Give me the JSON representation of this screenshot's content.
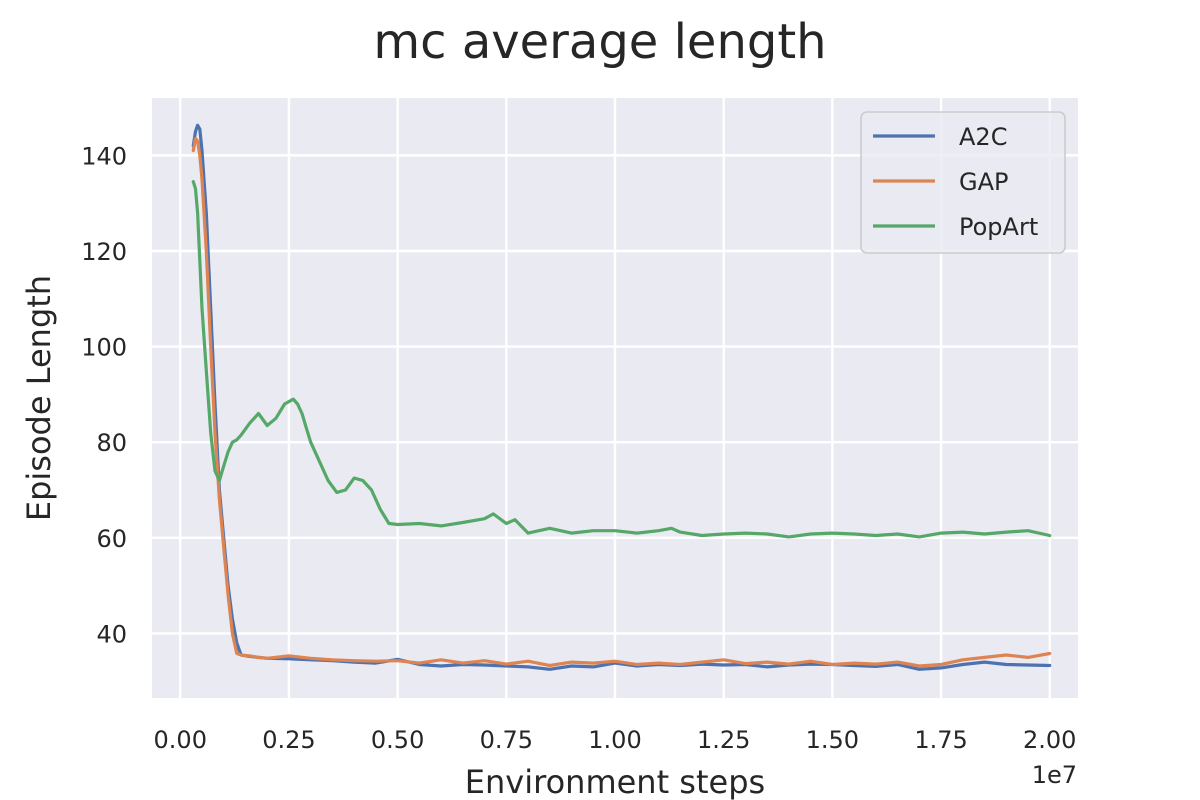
{
  "chart_data": {
    "type": "line",
    "title": "mc average length",
    "xlabel": "Environment steps",
    "ylabel": "Episode Length",
    "x_offset_label": "1e7",
    "xlim": [
      -0.065,
      2.065
    ],
    "ylim": [
      26.5,
      152
    ],
    "x_ticks": [
      0.0,
      0.25,
      0.5,
      0.75,
      1.0,
      1.25,
      1.5,
      1.75,
      2.0
    ],
    "x_tick_labels": [
      "0.00",
      "0.25",
      "0.50",
      "0.75",
      "1.00",
      "1.25",
      "1.50",
      "1.75",
      "2.00"
    ],
    "y_ticks": [
      40,
      60,
      80,
      100,
      120,
      140
    ],
    "y_tick_labels": [
      "40",
      "60",
      "80",
      "100",
      "120",
      "140"
    ],
    "grid": true,
    "legend_position": "top-right",
    "colors": {
      "background": "#eaeaf2",
      "grid": "#ffffff",
      "A2C": "#4c72b0",
      "GAP": "#dd8452",
      "PopArt": "#55a868"
    },
    "series": [
      {
        "name": "A2C",
        "x": [
          0.03,
          0.035,
          0.04,
          0.045,
          0.05,
          0.06,
          0.07,
          0.08,
          0.09,
          0.1,
          0.11,
          0.12,
          0.13,
          0.14,
          0.16,
          0.18,
          0.2,
          0.25,
          0.3,
          0.35,
          0.4,
          0.45,
          0.5,
          0.55,
          0.6,
          0.65,
          0.7,
          0.75,
          0.8,
          0.85,
          0.9,
          0.95,
          1.0,
          1.05,
          1.1,
          1.15,
          1.2,
          1.25,
          1.3,
          1.35,
          1.4,
          1.45,
          1.5,
          1.55,
          1.6,
          1.65,
          1.7,
          1.75,
          1.8,
          1.85,
          1.9,
          1.95,
          2.0
        ],
        "y": [
          142,
          145,
          146.3,
          145.5,
          141,
          128,
          108,
          88,
          70,
          60,
          50,
          43,
          38,
          35.5,
          35.2,
          35.0,
          34.8,
          34.7,
          34.5,
          34.3,
          34.0,
          33.8,
          34.6,
          33.5,
          33.2,
          33.5,
          33.4,
          33.2,
          33.0,
          32.5,
          33.2,
          33.0,
          33.8,
          33.2,
          33.5,
          33.3,
          33.6,
          33.4,
          33.5,
          33.0,
          33.4,
          33.6,
          33.5,
          33.3,
          33.1,
          33.5,
          32.5,
          32.8,
          33.5,
          34.0,
          33.5,
          33.4,
          33.3
        ]
      },
      {
        "name": "GAP",
        "x": [
          0.03,
          0.035,
          0.04,
          0.045,
          0.05,
          0.06,
          0.07,
          0.08,
          0.09,
          0.1,
          0.11,
          0.12,
          0.13,
          0.14,
          0.16,
          0.18,
          0.2,
          0.25,
          0.3,
          0.35,
          0.4,
          0.45,
          0.5,
          0.55,
          0.6,
          0.65,
          0.7,
          0.75,
          0.8,
          0.85,
          0.9,
          0.95,
          1.0,
          1.05,
          1.1,
          1.15,
          1.2,
          1.25,
          1.3,
          1.35,
          1.4,
          1.45,
          1.5,
          1.55,
          1.6,
          1.65,
          1.7,
          1.75,
          1.8,
          1.85,
          1.9,
          1.95,
          2.0
        ],
        "y": [
          141,
          143.5,
          143,
          140,
          135,
          120,
          100,
          82,
          68,
          58,
          48,
          40,
          35.8,
          35.5,
          35.3,
          35.0,
          34.8,
          35.3,
          34.8,
          34.5,
          34.3,
          34.2,
          34.3,
          33.8,
          34.5,
          33.8,
          34.3,
          33.6,
          34.2,
          33.3,
          34.0,
          33.8,
          34.2,
          33.5,
          33.8,
          33.5,
          34.0,
          34.5,
          33.7,
          34.0,
          33.6,
          34.2,
          33.5,
          33.8,
          33.6,
          34.0,
          33.2,
          33.5,
          34.5,
          35.0,
          35.5,
          35.0,
          35.8
        ]
      },
      {
        "name": "PopArt",
        "x": [
          0.03,
          0.035,
          0.04,
          0.045,
          0.05,
          0.06,
          0.07,
          0.08,
          0.09,
          0.1,
          0.11,
          0.12,
          0.13,
          0.14,
          0.16,
          0.18,
          0.2,
          0.22,
          0.24,
          0.26,
          0.27,
          0.28,
          0.29,
          0.3,
          0.32,
          0.34,
          0.36,
          0.38,
          0.4,
          0.42,
          0.44,
          0.46,
          0.48,
          0.5,
          0.55,
          0.6,
          0.65,
          0.7,
          0.72,
          0.75,
          0.77,
          0.8,
          0.85,
          0.9,
          0.95,
          1.0,
          1.05,
          1.1,
          1.13,
          1.15,
          1.2,
          1.25,
          1.3,
          1.35,
          1.4,
          1.45,
          1.5,
          1.55,
          1.6,
          1.65,
          1.7,
          1.75,
          1.8,
          1.85,
          1.9,
          1.95,
          2.0
        ],
        "y": [
          134.5,
          133,
          128,
          118,
          108,
          95,
          82,
          74,
          72,
          75,
          78,
          80,
          80.5,
          81.5,
          84,
          86,
          83.5,
          85,
          88,
          89,
          88,
          86,
          83,
          80,
          76,
          72,
          69.5,
          70,
          72.5,
          72,
          70,
          66,
          63,
          62.8,
          63,
          62.5,
          63.2,
          64,
          65,
          63,
          63.8,
          61,
          62,
          61,
          61.5,
          61.5,
          61,
          61.5,
          62,
          61.2,
          60.5,
          60.8,
          61,
          60.8,
          60.2,
          60.8,
          61,
          60.8,
          60.5,
          60.8,
          60.2,
          61,
          61.2,
          60.8,
          61.2,
          61.5,
          60.5
        ]
      }
    ]
  }
}
